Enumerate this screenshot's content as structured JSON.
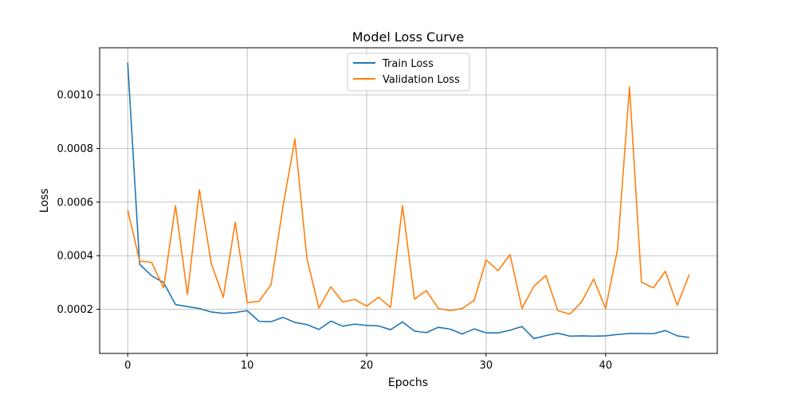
{
  "chart_data": {
    "type": "line",
    "title": "Model Loss Curve",
    "xlabel": "Epochs",
    "ylabel": "Loss",
    "xlim": [
      -2.35,
      49.35
    ],
    "ylim": [
      3.55e-05,
      0.0011755
    ],
    "xticks": [
      0,
      10,
      20,
      30,
      40
    ],
    "xtick_labels": [
      "0",
      "10",
      "20",
      "30",
      "40"
    ],
    "yticks": [
      0.0002,
      0.0004,
      0.0006,
      0.0008,
      0.001
    ],
    "ytick_labels": [
      "0.0002",
      "0.0004",
      "0.0006",
      "0.0008",
      "0.0010"
    ],
    "grid": true,
    "legend_position": "upper center",
    "x": [
      0,
      1,
      2,
      3,
      4,
      5,
      6,
      7,
      8,
      9,
      10,
      11,
      12,
      13,
      14,
      15,
      16,
      17,
      18,
      19,
      20,
      21,
      22,
      23,
      24,
      25,
      26,
      27,
      28,
      29,
      30,
      31,
      32,
      33,
      34,
      35,
      36,
      37,
      38,
      39,
      40,
      41,
      42,
      43,
      44,
      45,
      46,
      47
    ],
    "series": [
      {
        "name": "Train Loss",
        "color": "#1f77b4",
        "values": [
          0.00112,
          0.000368,
          0.000325,
          0.0003,
          0.000218,
          0.00021,
          0.000203,
          0.00019,
          0.000185,
          0.000188,
          0.000195,
          0.000155,
          0.000154,
          0.00017,
          0.000151,
          0.000143,
          0.000125,
          0.000156,
          0.000137,
          0.000145,
          0.00014,
          0.000138,
          0.000124,
          0.000153,
          0.000119,
          0.000113,
          0.000133,
          0.000126,
          0.000108,
          0.000127,
          0.000112,
          0.000112,
          0.000122,
          0.000136,
          9.1e-05,
          0.000102,
          0.000111,
          0.0001,
          0.000101,
          0.0001,
          0.000101,
          0.000106,
          0.00011,
          0.00011,
          0.000109,
          0.000121,
          0.000101,
          9.5e-05
        ]
      },
      {
        "name": "Validation Loss",
        "color": "#ff7f0e",
        "values": [
          0.00057,
          0.00038,
          0.000375,
          0.00028,
          0.000587,
          0.000255,
          0.000645,
          0.00037,
          0.000245,
          0.000525,
          0.000225,
          0.00023,
          0.000292,
          0.000585,
          0.000835,
          0.00039,
          0.000205,
          0.000284,
          0.000227,
          0.000237,
          0.000212,
          0.000245,
          0.000207,
          0.000587,
          0.000238,
          0.00027,
          0.000203,
          0.000195,
          0.000203,
          0.000233,
          0.000384,
          0.000344,
          0.000404,
          0.000204,
          0.000286,
          0.000326,
          0.000195,
          0.000182,
          0.000228,
          0.000313,
          0.000203,
          0.000423,
          0.00103,
          0.000301,
          0.00028,
          0.000342,
          0.000215,
          0.00033
        ]
      }
    ]
  }
}
